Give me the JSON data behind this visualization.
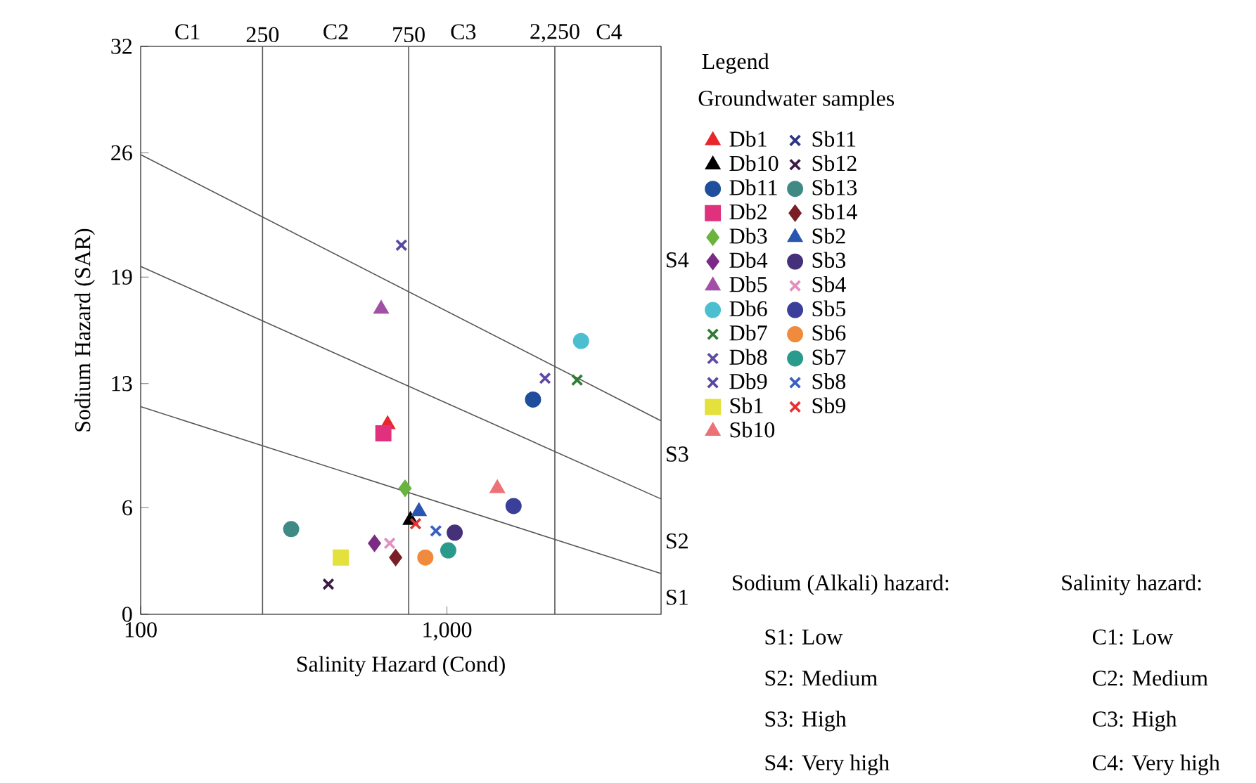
{
  "chart_data": {
    "type": "scatter",
    "xlabel": "Salinity Hazard (Cond)",
    "ylabel": "Sodium Hazard (SAR)",
    "legend_title": "Groundwater samples",
    "log": "x",
    "xlim": [
      100,
      5000
    ],
    "ylim": [
      0,
      32
    ],
    "xticks": [
      100,
      {
        "value": 1000,
        "label": "1,000"
      }
    ],
    "yticks": [
      0,
      6,
      13,
      19,
      26,
      32
    ],
    "legend": "right",
    "grid": false,
    "ref_lines": [
      {
        "axis": "x",
        "value": 250,
        "label": "250",
        "color": "#555555"
      },
      {
        "axis": "x",
        "value": 750,
        "label": "750",
        "color": "#555555"
      },
      {
        "axis": "x",
        "value": 2250,
        "label": "2,250",
        "color": "#555555"
      }
    ],
    "annotations": [
      "Legend",
      "Sodium (Alkali) hazard:",
      "S1: Low",
      "S2: Medium",
      "S3: High",
      "S4: Very high",
      "Salinity hazard:",
      "C1: Low",
      "C2: Medium",
      "C3: High",
      "C4: Very high",
      "C1",
      "C2",
      "C3",
      "C4",
      "S4",
      "S3",
      "S2",
      "S1"
    ],
    "series": [
      {
        "type": "line",
        "color": "#555555",
        "x": [
          100,
          5000
        ],
        "values": [
          25.9,
          10.9
        ]
      },
      {
        "type": "line",
        "color": "#555555",
        "x": [
          100,
          5000
        ],
        "values": [
          19.6,
          6.5
        ]
      },
      {
        "type": "line",
        "color": "#555555",
        "x": [
          100,
          5000
        ],
        "values": [
          11.7,
          2.3
        ]
      },
      {
        "name": "Db1",
        "color": "#e8262b",
        "marker": "triangle",
        "x": [
          640
        ],
        "values": [
          10.7
        ]
      },
      {
        "name": "Db10",
        "color": "#000000",
        "marker": "triangle",
        "x": [
          760
        ],
        "values": [
          5.3
        ]
      },
      {
        "name": "Db11",
        "color": "#1f4e9c",
        "marker": "circle",
        "x": [
          1910
        ],
        "values": [
          12.1
        ]
      },
      {
        "name": "Db2",
        "color": "#e0317e",
        "marker": "square",
        "x": [
          620
        ],
        "values": [
          10.2
        ]
      },
      {
        "name": "Db3",
        "color": "#6ab43e",
        "marker": "diamond",
        "x": [
          730
        ],
        "values": [
          7.1
        ]
      },
      {
        "name": "Db4",
        "color": "#7b2b86",
        "marker": "diamond",
        "x": [
          580
        ],
        "values": [
          4.0
        ]
      },
      {
        "name": "Db5",
        "color": "#a24fa6",
        "marker": "triangle",
        "x": [
          610
        ],
        "values": [
          17.2
        ]
      },
      {
        "name": "Db6",
        "color": "#4bbfcf",
        "marker": "circle",
        "x": [
          2740
        ],
        "values": [
          15.4
        ]
      },
      {
        "name": "Db7",
        "color": "#2e7d32",
        "marker": "cross",
        "x": [
          2660
        ],
        "values": [
          13.2
        ]
      },
      {
        "name": "Db8",
        "color": "#6048a8",
        "marker": "cross",
        "x": [
          2090
        ],
        "values": [
          13.3
        ]
      },
      {
        "name": "Db9",
        "color": "#5a46a6",
        "marker": "cross",
        "x": [
          710
        ],
        "values": [
          20.8
        ]
      },
      {
        "name": "Sb1",
        "color": "#e4e03c",
        "marker": "square",
        "x": [
          450
        ],
        "values": [
          3.2
        ]
      },
      {
        "name": "Sb10",
        "color": "#ec7276",
        "marker": "triangle",
        "x": [
          1460
        ],
        "values": [
          7.1
        ]
      },
      {
        "name": "Sb11",
        "color": "#2b3585",
        "marker": "cross",
        "x": [
          null
        ],
        "values": [
          null
        ]
      },
      {
        "name": "Sb12",
        "color": "#3b1a45",
        "marker": "cross",
        "x": [
          410
        ],
        "values": [
          1.7
        ]
      },
      {
        "name": "Sb13",
        "color": "#3f8a85",
        "marker": "circle",
        "x": [
          310
        ],
        "values": [
          4.8
        ]
      },
      {
        "name": "Sb14",
        "color": "#7a1f25",
        "marker": "diamond",
        "x": [
          680
        ],
        "values": [
          3.2
        ]
      },
      {
        "name": "Sb2",
        "color": "#2a55b0",
        "marker": "triangle",
        "x": [
          810
        ],
        "values": [
          5.8
        ]
      },
      {
        "name": "Sb3",
        "color": "#45307a",
        "marker": "circle",
        "x": [
          1060
        ],
        "values": [
          4.6
        ]
      },
      {
        "name": "Sb4",
        "color": "#e48fc0",
        "marker": "cross",
        "x": [
          650
        ],
        "values": [
          4.0
        ]
      },
      {
        "name": "Sb5",
        "color": "#3a3f9a",
        "marker": "circle",
        "x": [
          1650
        ],
        "values": [
          6.1
        ]
      },
      {
        "name": "Sb6",
        "color": "#f08a3c",
        "marker": "circle",
        "x": [
          850
        ],
        "values": [
          3.2
        ]
      },
      {
        "name": "Sb7",
        "color": "#2a9a8c",
        "marker": "circle",
        "x": [
          1010
        ],
        "values": [
          3.6
        ]
      },
      {
        "name": "Sb8",
        "color": "#3b5fc0",
        "marker": "cross",
        "x": [
          920
        ],
        "values": [
          4.7
        ]
      },
      {
        "name": "Sb9",
        "color": "#e63232",
        "marker": "cross",
        "x": [
          790
        ],
        "values": [
          5.1
        ]
      }
    ]
  }
}
